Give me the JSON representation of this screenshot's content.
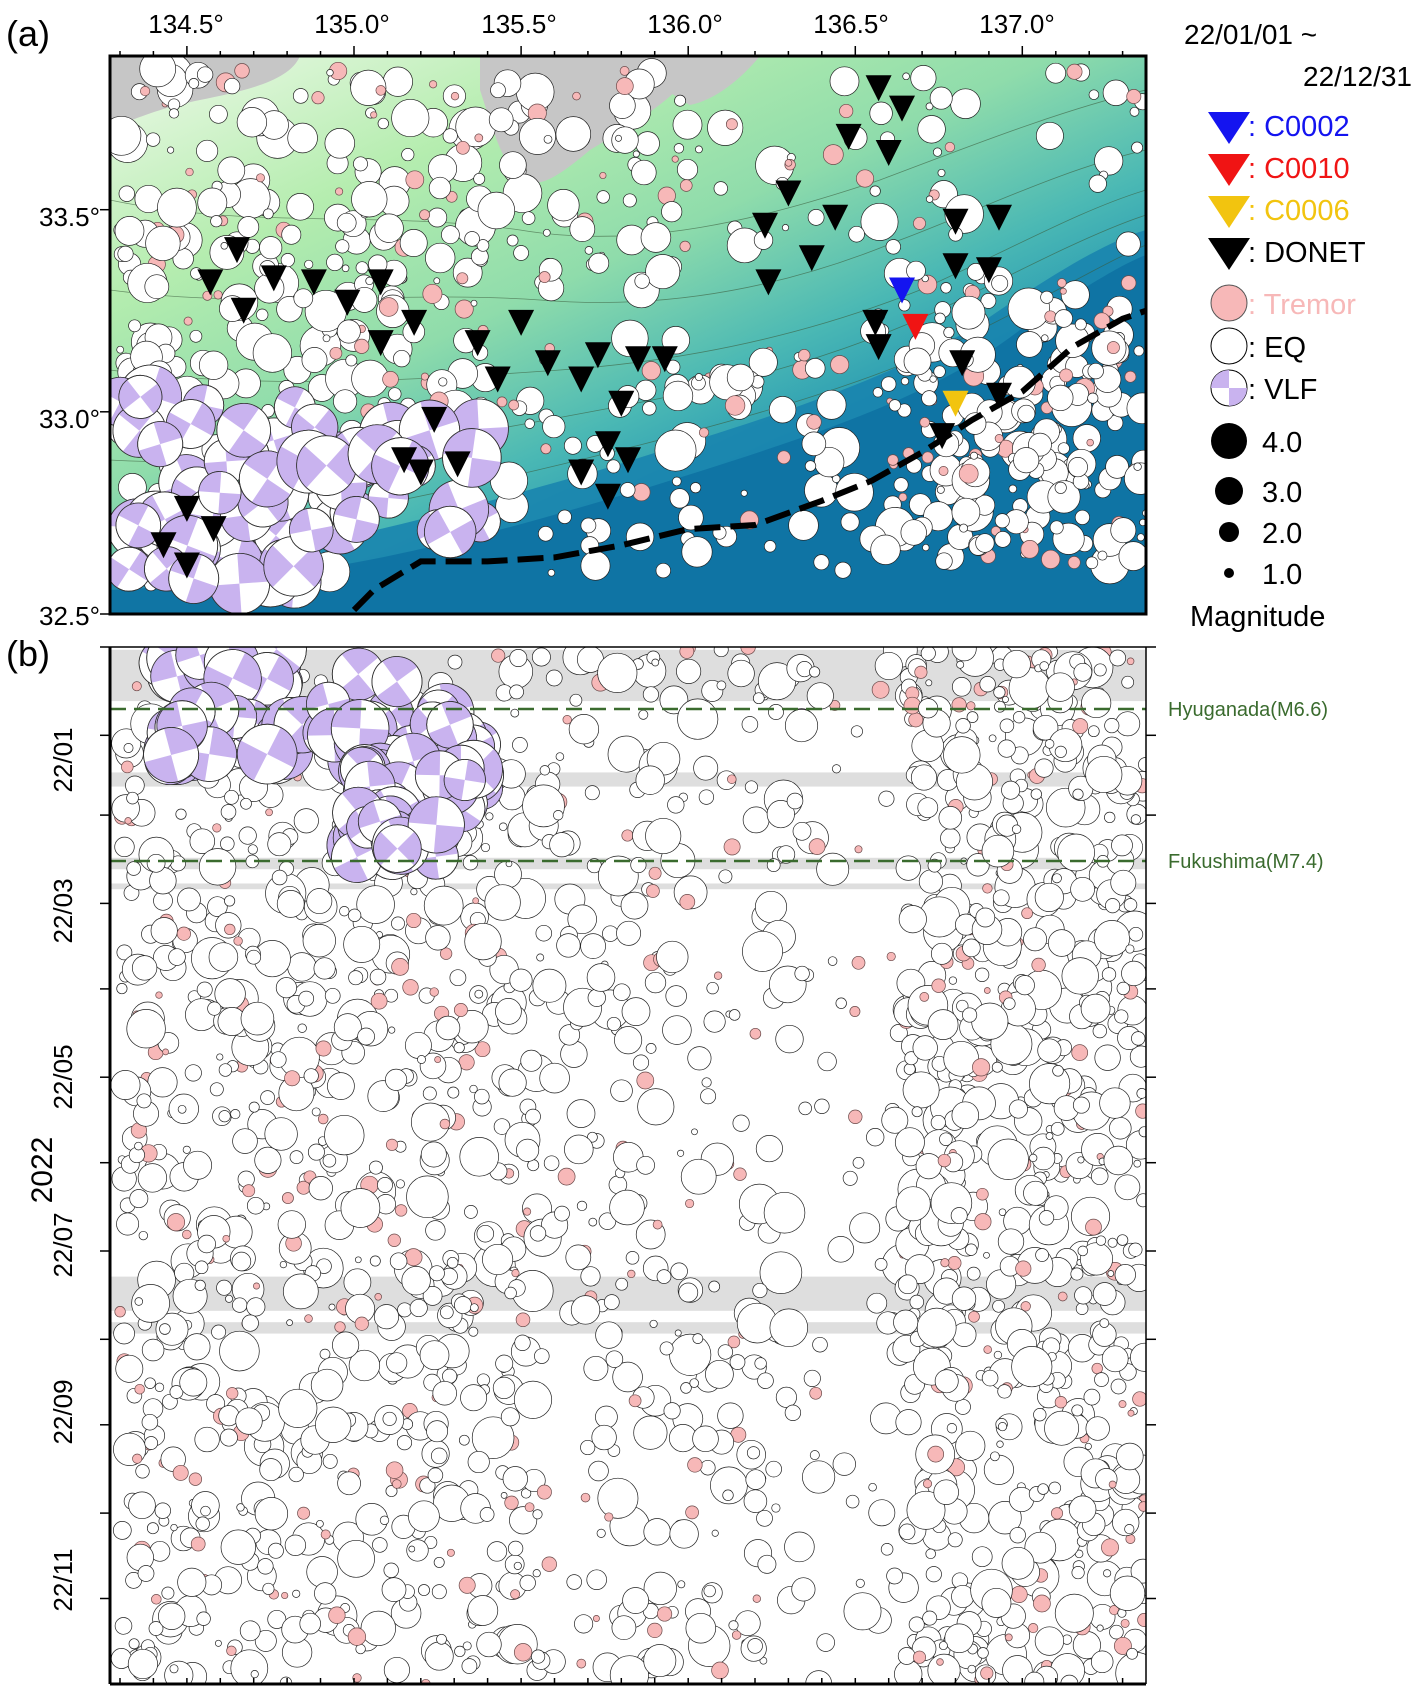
{
  "panel_a": {
    "label": "(a)",
    "x_ticks": [
      "134.5°",
      "135.0°",
      "135.5°",
      "136.0°",
      "136.5°",
      "137.0°"
    ],
    "y_ticks": [
      "33.5°",
      "33.0°",
      "32.5°"
    ]
  },
  "panel_b": {
    "label": "(b)",
    "year_label": "2022",
    "y_ticks": [
      "22/01",
      "22/03",
      "22/05",
      "22/07",
      "22/09",
      "22/11"
    ],
    "events": [
      {
        "label": "Hyuganada(M6.6)",
        "date": "2022-01-22"
      },
      {
        "label": "Fukushima(M7.4)",
        "date": "2022-03-16"
      }
    ]
  },
  "legend": {
    "date_start": "22/01/01 ~",
    "date_end": "22/12/31",
    "entries": [
      {
        "label": ": C0002",
        "color": "#1414f0",
        "symbol": "inverted-triangle"
      },
      {
        "label": ": C0010",
        "color": "#f01414",
        "symbol": "inverted-triangle"
      },
      {
        "label": ": C0006",
        "color": "#f2c40f",
        "symbol": "inverted-triangle"
      },
      {
        "label": ": DONET",
        "color": "#000000",
        "symbol": "inverted-triangle"
      },
      {
        "label": ": Tremor",
        "color": "#f7b8b8",
        "symbol": "circle"
      },
      {
        "label": ": EQ",
        "color": "#ffffff",
        "symbol": "circle"
      },
      {
        "label": ": VLF",
        "color": "#c9b3ef",
        "symbol": "beachball"
      }
    ],
    "magnitudes": [
      "4.0",
      "3.0",
      "2.0",
      "1.0"
    ],
    "magnitude_title": "Magnitude"
  },
  "colors": {
    "tremor": "#f7b8b8",
    "eq": "#ffffff",
    "vlf": "#c9b3ef",
    "land": "#c8c8c8",
    "deep_sea": "#1a88b0",
    "shelf": "#b4ecb0",
    "event_line": "#3a6b2e",
    "data_gap": "#dedede"
  },
  "chart_data": [
    {
      "type": "scatter",
      "name": "map",
      "xlim": [
        134.27,
        137.37
      ],
      "ylim": [
        32.5,
        33.88
      ],
      "stations": [
        {
          "id": "C0002",
          "lon": 136.64,
          "lat": 33.3
        },
        {
          "id": "C0010",
          "lon": 136.68,
          "lat": 33.21
        },
        {
          "id": "C0006",
          "lon": 136.8,
          "lat": 33.02
        },
        {
          "id": "DONET",
          "lon": 136.57,
          "lat": 33.8
        },
        {
          "id": "DONET",
          "lon": 136.64,
          "lat": 33.75
        },
        {
          "id": "DONET",
          "lon": 136.48,
          "lat": 33.68
        },
        {
          "id": "DONET",
          "lon": 136.6,
          "lat": 33.64
        },
        {
          "id": "DONET",
          "lon": 136.3,
          "lat": 33.54
        },
        {
          "id": "DONET",
          "lon": 136.44,
          "lat": 33.48
        },
        {
          "id": "DONET",
          "lon": 136.23,
          "lat": 33.46
        },
        {
          "id": "DONET",
          "lon": 136.37,
          "lat": 33.38
        },
        {
          "id": "DONET",
          "lon": 136.8,
          "lat": 33.47
        },
        {
          "id": "DONET",
          "lon": 136.93,
          "lat": 33.48
        },
        {
          "id": "DONET",
          "lon": 136.24,
          "lat": 33.32
        },
        {
          "id": "DONET",
          "lon": 136.8,
          "lat": 33.36
        },
        {
          "id": "DONET",
          "lon": 136.9,
          "lat": 33.35
        },
        {
          "id": "DONET",
          "lon": 136.56,
          "lat": 33.22
        },
        {
          "id": "DONET",
          "lon": 136.57,
          "lat": 33.16
        },
        {
          "id": "DONET",
          "lon": 136.82,
          "lat": 33.12
        },
        {
          "id": "DONET",
          "lon": 136.93,
          "lat": 33.04
        },
        {
          "id": "DONET",
          "lon": 136.76,
          "lat": 32.94
        },
        {
          "id": "DONET",
          "lon": 134.65,
          "lat": 33.4
        },
        {
          "id": "DONET",
          "lon": 134.57,
          "lat": 33.32
        },
        {
          "id": "DONET",
          "lon": 134.76,
          "lat": 33.33
        },
        {
          "id": "DONET",
          "lon": 134.67,
          "lat": 33.25
        },
        {
          "id": "DONET",
          "lon": 134.88,
          "lat": 33.32
        },
        {
          "id": "DONET",
          "lon": 134.98,
          "lat": 33.27
        },
        {
          "id": "DONET",
          "lon": 135.08,
          "lat": 33.32
        },
        {
          "id": "DONET",
          "lon": 135.18,
          "lat": 33.22
        },
        {
          "id": "DONET",
          "lon": 135.08,
          "lat": 33.17
        },
        {
          "id": "DONET",
          "lon": 135.37,
          "lat": 33.17
        },
        {
          "id": "DONET",
          "lon": 135.5,
          "lat": 33.22
        },
        {
          "id": "DONET",
          "lon": 135.43,
          "lat": 33.08
        },
        {
          "id": "DONET",
          "lon": 135.58,
          "lat": 33.12
        },
        {
          "id": "DONET",
          "lon": 135.73,
          "lat": 33.14
        },
        {
          "id": "DONET",
          "lon": 135.68,
          "lat": 33.08
        },
        {
          "id": "DONET",
          "lon": 135.85,
          "lat": 33.13
        },
        {
          "id": "DONET",
          "lon": 135.93,
          "lat": 33.13
        },
        {
          "id": "DONET",
          "lon": 135.8,
          "lat": 33.02
        },
        {
          "id": "DONET",
          "lon": 135.76,
          "lat": 32.92
        },
        {
          "id": "DONET",
          "lon": 135.82,
          "lat": 32.88
        },
        {
          "id": "DONET",
          "lon": 135.68,
          "lat": 32.85
        },
        {
          "id": "DONET",
          "lon": 135.76,
          "lat": 32.79
        },
        {
          "id": "DONET",
          "lon": 135.24,
          "lat": 32.98
        },
        {
          "id": "DONET",
          "lon": 135.15,
          "lat": 32.88
        },
        {
          "id": "DONET",
          "lon": 135.2,
          "lat": 32.85
        },
        {
          "id": "DONET",
          "lon": 135.31,
          "lat": 32.87
        },
        {
          "id": "DONET",
          "lon": 134.5,
          "lat": 32.76
        },
        {
          "id": "DONET",
          "lon": 134.43,
          "lat": 32.67
        },
        {
          "id": "DONET",
          "lon": 134.58,
          "lat": 32.71
        },
        {
          "id": "DONET",
          "lon": 134.5,
          "lat": 32.62
        }
      ],
      "trough": [
        [
          135.0,
          32.51
        ],
        [
          135.06,
          32.56
        ],
        [
          135.2,
          32.63
        ],
        [
          135.4,
          32.63
        ],
        [
          135.6,
          32.64
        ],
        [
          135.8,
          32.67
        ],
        [
          136.0,
          32.71
        ],
        [
          136.2,
          32.72
        ],
        [
          136.4,
          32.78
        ],
        [
          136.55,
          32.83
        ],
        [
          136.7,
          32.9
        ],
        [
          136.85,
          32.98
        ],
        [
          137.0,
          33.05
        ],
        [
          137.15,
          33.16
        ],
        [
          137.3,
          33.23
        ],
        [
          137.37,
          33.25
        ]
      ]
    },
    {
      "type": "scatter",
      "name": "space-time",
      "xlim": [
        134.27,
        137.37
      ],
      "ylim": [
        "2022-01-01",
        "2022-12-31"
      ],
      "ylabel": "2022",
      "data_gaps": [
        [
          "2022-01-02",
          "2022-01-20"
        ],
        [
          "2022-02-14",
          "2022-02-19"
        ],
        [
          "2022-03-16",
          "2022-03-20"
        ],
        [
          "2022-03-25",
          "2022-03-27"
        ],
        [
          "2022-08-10",
          "2022-08-22"
        ],
        [
          "2022-08-26",
          "2022-08-30"
        ]
      ],
      "vlf_bursts": [
        {
          "lon": [
            134.42,
            134.8
          ],
          "time": [
            "2022-01-01",
            "2022-01-15"
          ]
        },
        {
          "lon": [
            134.42,
            134.85
          ],
          "time": [
            "2022-01-23",
            "2022-02-10"
          ]
        },
        {
          "lon": [
            134.92,
            135.38
          ],
          "time": [
            "2022-01-10",
            "2022-02-10"
          ]
        },
        {
          "lon": [
            135.02,
            135.38
          ],
          "time": [
            "2022-02-10",
            "2022-02-28"
          ]
        },
        {
          "lon": [
            135.0,
            135.25
          ],
          "time": [
            "2022-02-28",
            "2022-03-16"
          ]
        }
      ]
    }
  ]
}
